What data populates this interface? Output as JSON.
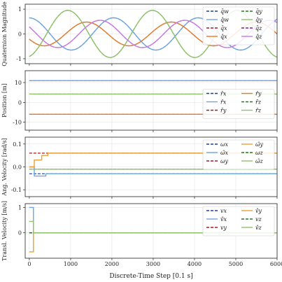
{
  "chart_data": [
    {
      "type": "line",
      "ylabel": "Quaternion Magnitude",
      "ylim": [
        -1.2,
        1.2
      ],
      "yticks": [
        -1,
        0,
        1
      ],
      "grid": true,
      "legend": {
        "placement": "top-right",
        "columns": 2
      },
      "series": [
        {
          "name": "q_w",
          "label": "q̄w",
          "style": "dashed",
          "color": "#1f3f9f",
          "kind": "sin",
          "amp": 0.65,
          "period": 2050,
          "phase": 1.6
        },
        {
          "name": "q_w_hat",
          "label": "q̂w",
          "style": "solid",
          "color": "#6ea6e0",
          "kind": "sin",
          "amp": 0.65,
          "period": 2050,
          "phase": 1.6
        },
        {
          "name": "q_x",
          "label": "q̄x",
          "style": "dashed",
          "color": "#a01f1f",
          "kind": "sin",
          "amp": 0.48,
          "period": 2050,
          "phase": 3.6
        },
        {
          "name": "q_x_hat",
          "label": "q̂x",
          "style": "solid",
          "color": "#e07d2a",
          "kind": "sin",
          "amp": 0.48,
          "period": 2050,
          "phase": 3.6
        },
        {
          "name": "q_y",
          "label": "q̄y",
          "style": "dashed",
          "color": "#1f7a1f",
          "kind": "sin",
          "amp": 0.95,
          "period": 2050,
          "phase": 5.0
        },
        {
          "name": "q_y_hat",
          "label": "q̂y",
          "style": "solid",
          "color": "#8fc26a",
          "kind": "sin",
          "amp": 0.95,
          "period": 2050,
          "phase": 5.0
        },
        {
          "name": "q_z",
          "label": "q̄z",
          "style": "dashed",
          "color": "#7a1fa0",
          "kind": "sin",
          "amp": 0.55,
          "period": 2050,
          "phase": 2.6
        },
        {
          "name": "q_z_hat",
          "label": "q̂z",
          "style": "solid",
          "color": "#c77ae0",
          "kind": "sin",
          "amp": 0.55,
          "period": 2050,
          "phase": 2.6
        }
      ]
    },
    {
      "type": "line",
      "ylabel": "Position [m]",
      "ylim": [
        -14,
        16
      ],
      "yticks": [
        -10,
        0,
        10
      ],
      "grid": true,
      "legend": {
        "placement": "right",
        "columns": 2
      },
      "series": [
        {
          "name": "r_x",
          "label": "r̄x",
          "style": "dashed",
          "color": "#1f3f9f",
          "kind": "const",
          "value": 11.0
        },
        {
          "name": "r_x_hat",
          "label": "r̂x",
          "style": "solid",
          "color": "#6ea6e0",
          "kind": "const",
          "value": 11.0
        },
        {
          "name": "r_y",
          "label": "r̄y",
          "style": "dashed",
          "color": "#a01f1f",
          "kind": "const",
          "value": -6.0
        },
        {
          "name": "r_y_hat",
          "label": "r̂y",
          "style": "solid",
          "color": "#e07d2a",
          "kind": "const",
          "value": -6.0
        },
        {
          "name": "r_z",
          "label": "r̄z",
          "style": "dashed",
          "color": "#1f7a1f",
          "kind": "const",
          "value": 4.2
        },
        {
          "name": "r_z_hat",
          "label": "r̂z",
          "style": "solid",
          "color": "#8fc26a",
          "kind": "const",
          "value": 4.2
        }
      ]
    },
    {
      "type": "line",
      "ylabel": "Ang. Velocity [rad/s]",
      "ylim": [
        -0.13,
        0.13
      ],
      "yticks": [
        -0.1,
        0.0,
        0.1
      ],
      "grid": true,
      "legend": {
        "placement": "top-right",
        "columns": 2
      },
      "series": [
        {
          "name": "omega_x",
          "label": "ωx",
          "style": "dashed",
          "color": "#1f3f9f",
          "kind": "const",
          "value": -0.03
        },
        {
          "name": "omega_x_hat",
          "label": "ω̂x",
          "style": "solid",
          "color": "#6ea6e0",
          "kind": "steps",
          "points": [
            [
              0,
              0.0
            ],
            [
              120,
              -0.04
            ],
            [
              400,
              -0.03
            ],
            [
              6000,
              -0.03
            ]
          ]
        },
        {
          "name": "omega_y",
          "label": "ωy",
          "style": "dashed",
          "color": "#a01f1f",
          "kind": "const",
          "value": 0.06
        },
        {
          "name": "omega_y_hat",
          "label": "ω̂y",
          "style": "solid",
          "color": "#e6a23c",
          "kind": "steps",
          "points": [
            [
              0,
              0.0
            ],
            [
              120,
              0.03
            ],
            [
              300,
              0.05
            ],
            [
              450,
              0.06
            ],
            [
              6000,
              0.06
            ]
          ]
        },
        {
          "name": "omega_z",
          "label": "ωz",
          "style": "dashed",
          "color": "#1f7a1f",
          "kind": "const",
          "value": -0.01
        },
        {
          "name": "omega_z_hat",
          "label": "ω̂z",
          "style": "solid",
          "color": "#8fc26a",
          "kind": "steps",
          "points": [
            [
              0,
              -0.01
            ],
            [
              6000,
              -0.01
            ]
          ]
        }
      ]
    },
    {
      "type": "line",
      "ylabel": "Transl. Velocity [m/s]",
      "xlabel": "Discrete-Time Step [0.1 s]",
      "ylim": [
        -1.0,
        1.15
      ],
      "yticks": [
        0,
        1
      ],
      "xlim": [
        -100,
        6000
      ],
      "xticks": [
        0,
        1000,
        2000,
        3000,
        4000,
        5000,
        6000
      ],
      "grid": true,
      "legend": {
        "placement": "top-right",
        "columns": 2
      },
      "series": [
        {
          "name": "v_x",
          "label": "vx",
          "style": "dashed",
          "color": "#1f3f9f",
          "kind": "const",
          "value": 0.0
        },
        {
          "name": "v_x_hat",
          "label": "v̂x",
          "style": "solid",
          "color": "#6ea6e0",
          "kind": "steps",
          "points": [
            [
              0,
              1.0
            ],
            [
              100,
              0.0
            ],
            [
              6000,
              0.0
            ]
          ]
        },
        {
          "name": "v_y",
          "label": "vy",
          "style": "dashed",
          "color": "#a01f1f",
          "kind": "const",
          "value": 0.0
        },
        {
          "name": "v_y_hat",
          "label": "v̂y",
          "style": "solid",
          "color": "#e6a23c",
          "kind": "steps",
          "points": [
            [
              0,
              -0.75
            ],
            [
              100,
              0.0
            ],
            [
              6000,
              0.0
            ]
          ]
        },
        {
          "name": "v_z",
          "label": "vz",
          "style": "dashed",
          "color": "#1f7a1f",
          "kind": "const",
          "value": 0.0
        },
        {
          "name": "v_z_hat",
          "label": "v̂z",
          "style": "solid",
          "color": "#8fc26a",
          "kind": "steps",
          "points": [
            [
              0,
              0.45
            ],
            [
              100,
              0.0
            ],
            [
              6000,
              0.0
            ]
          ]
        }
      ]
    }
  ]
}
